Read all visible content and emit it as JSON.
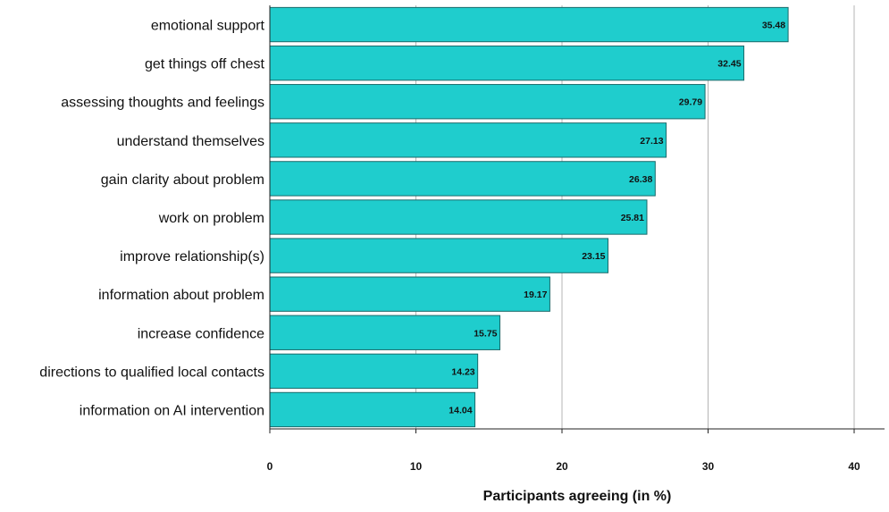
{
  "chart_data": {
    "type": "bar",
    "orientation": "horizontal",
    "categories": [
      "emotional support",
      "get things off chest",
      "assessing thoughts and feelings",
      "understand themselves",
      "gain clarity about problem",
      "work on problem",
      "improve relationship(s)",
      "information about problem",
      "increase confidence",
      "directions to qualified local contacts",
      "information on AI intervention"
    ],
    "values": [
      35.48,
      32.45,
      29.79,
      27.13,
      26.38,
      25.81,
      23.15,
      19.17,
      15.75,
      14.23,
      14.04
    ],
    "value_labels": [
      "35.48",
      "32.45",
      "29.79",
      "27.13",
      "26.38",
      "25.81",
      "23.15",
      "19.17",
      "15.75",
      "14.23",
      "14.04"
    ],
    "xlabel": "Participants agreeing (in %)",
    "xlim": [
      0,
      42
    ],
    "xticks": [
      0,
      10,
      20,
      30,
      40
    ],
    "grid": true,
    "bar_color": "#1fcdcd",
    "bar_edge_color": "#1a6a6a"
  }
}
